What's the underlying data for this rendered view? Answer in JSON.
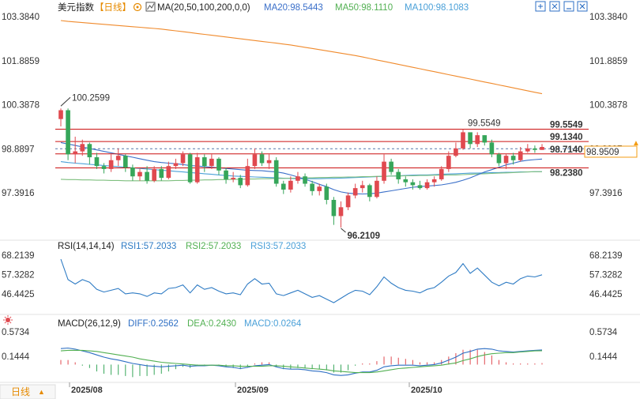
{
  "header": {
    "title": "美元指数",
    "period": "【日线】",
    "ma_label": "MA(20,50,100,200,0,0)",
    "ma20": "MA20:98.5443",
    "ma50": "MA50:98.1110",
    "ma100": "MA100:98.1083",
    "icons": [
      "expand-icon",
      "fullscreen-icon",
      "minimize-icon",
      "close-icon"
    ]
  },
  "colors": {
    "up": "#e0494f",
    "down": "#36a65a",
    "ma20": "#3a6fc9",
    "ma50": "#7fbf7f",
    "ma100": "#4aa0d8",
    "ma200": "#f08a2c",
    "level": "#cc1111",
    "last": "#f39c12",
    "rsi": "#2e7bc4",
    "diff": "#2e6fc4",
    "dea": "#52b052"
  },
  "price_axis": {
    "ticks": [
      "103.3840",
      "101.8859",
      "100.3878",
      "98.8897",
      "97.3916"
    ],
    "current_label": "98.8897"
  },
  "levels": [
    {
      "value": "99.5549"
    },
    {
      "value": "99.1340"
    },
    {
      "value": "98.7140"
    },
    {
      "value": "98.2380"
    }
  ],
  "last_price": "98.9509",
  "annotations": {
    "high": "100.2599",
    "low": "96.2109",
    "swing_high": "99.5549"
  },
  "rsi_panel": {
    "label": "RSI(14,14,14)",
    "rsi1": "RSI1:57.2033",
    "rsi2": "RSI2:57.2033",
    "rsi3": "RSI3:57.2033",
    "ticks": [
      "68.2139",
      "57.3282",
      "46.4425"
    ]
  },
  "macd_panel": {
    "label": "MACD(26,12,9)",
    "diff": "DIFF:0.2562",
    "dea": "DEA:0.2430",
    "macd": "MACD:0.0264",
    "ticks": [
      "0.5734",
      "0.1444"
    ]
  },
  "period_button": "日线",
  "x_labels": [
    "2025/08",
    "2025/09",
    "2025/10"
  ],
  "chart_data": [
    {
      "type": "candlestick",
      "title": "美元指数",
      "ylim": [
        96.2109,
        103.384
      ],
      "y_ticks": [
        103.384,
        101.8859,
        100.3878,
        98.8897,
        97.3916
      ],
      "x_labels": [
        "2025/08",
        "2025/09",
        "2025/10"
      ],
      "candles": [
        [
          99.9,
          100.2,
          100.26,
          99.65
        ],
        [
          100.2,
          98.7,
          100.26,
          98.5
        ],
        [
          98.7,
          98.8,
          99.3,
          98.4
        ],
        [
          98.8,
          99.05,
          99.2,
          98.65
        ],
        [
          99.05,
          98.6,
          99.1,
          98.35
        ],
        [
          98.6,
          98.3,
          98.75,
          98.2
        ],
        [
          98.3,
          98.2,
          98.4,
          98.05
        ],
        [
          98.2,
          98.5,
          98.7,
          98.1
        ],
        [
          98.5,
          98.65,
          98.9,
          98.3
        ],
        [
          98.65,
          98.25,
          98.7,
          98.1
        ],
        [
          98.25,
          97.95,
          98.35,
          97.8
        ],
        [
          97.95,
          98.1,
          98.2,
          97.8
        ],
        [
          98.1,
          97.8,
          98.3,
          97.7
        ],
        [
          97.8,
          98.2,
          98.3,
          97.75
        ],
        [
          98.2,
          97.9,
          98.3,
          97.8
        ],
        [
          97.9,
          98.3,
          98.45,
          97.85
        ],
        [
          98.3,
          98.4,
          98.55,
          98.2
        ],
        [
          98.4,
          98.7,
          98.8,
          98.3
        ],
        [
          98.7,
          97.75,
          98.75,
          97.7
        ],
        [
          97.75,
          98.6,
          98.75,
          97.7
        ],
        [
          98.6,
          98.3,
          98.7,
          98.1
        ],
        [
          98.3,
          98.55,
          98.7,
          98.2
        ],
        [
          98.55,
          98.15,
          98.6,
          98.0
        ],
        [
          98.15,
          97.85,
          98.25,
          97.7
        ],
        [
          97.85,
          97.9,
          98.1,
          97.75
        ],
        [
          97.9,
          97.65,
          98.0,
          97.55
        ],
        [
          97.65,
          98.3,
          98.55,
          97.6
        ],
        [
          98.3,
          98.7,
          98.9,
          98.2
        ],
        [
          98.7,
          98.4,
          98.8,
          98.3
        ],
        [
          98.4,
          98.5,
          98.7,
          98.2
        ],
        [
          98.5,
          97.7,
          98.6,
          97.6
        ],
        [
          97.7,
          97.5,
          97.8,
          97.35
        ],
        [
          97.5,
          97.8,
          97.95,
          97.4
        ],
        [
          97.8,
          97.95,
          98.1,
          97.7
        ],
        [
          97.95,
          97.7,
          98.05,
          97.6
        ],
        [
          97.7,
          97.45,
          97.8,
          97.3
        ],
        [
          97.45,
          97.6,
          97.7,
          97.3
        ],
        [
          97.6,
          97.15,
          97.7,
          97.0
        ],
        [
          97.15,
          96.6,
          97.25,
          96.3
        ],
        [
          96.6,
          96.9,
          97.1,
          96.21
        ],
        [
          96.9,
          97.3,
          97.4,
          96.8
        ],
        [
          97.3,
          97.55,
          97.7,
          97.2
        ],
        [
          97.55,
          97.65,
          97.8,
          97.4
        ],
        [
          97.65,
          97.25,
          97.7,
          97.1
        ],
        [
          97.25,
          97.8,
          97.95,
          97.2
        ],
        [
          97.8,
          98.45,
          98.7,
          97.7
        ],
        [
          98.45,
          98.1,
          98.55,
          98.0
        ],
        [
          98.1,
          97.85,
          98.2,
          97.7
        ],
        [
          97.85,
          97.75,
          97.95,
          97.6
        ],
        [
          97.75,
          97.65,
          97.85,
          97.5
        ],
        [
          97.65,
          97.55,
          97.8,
          97.5
        ],
        [
          97.55,
          97.75,
          97.85,
          97.5
        ],
        [
          97.75,
          97.85,
          97.95,
          97.6
        ],
        [
          97.85,
          98.2,
          98.3,
          97.8
        ],
        [
          98.2,
          98.65,
          98.8,
          98.1
        ],
        [
          98.65,
          98.9,
          99.1,
          98.6
        ],
        [
          98.9,
          99.45,
          99.55,
          98.85
        ],
        [
          99.45,
          99.05,
          99.4,
          98.9
        ],
        [
          99.05,
          99.35,
          99.45,
          98.95
        ],
        [
          99.35,
          99.1,
          99.35,
          99.0
        ],
        [
          99.1,
          98.7,
          99.2,
          98.6
        ],
        [
          98.7,
          98.4,
          98.75,
          98.3
        ],
        [
          98.4,
          98.65,
          98.7,
          98.2
        ],
        [
          98.65,
          98.5,
          98.75,
          98.35
        ],
        [
          98.5,
          98.8,
          98.95,
          98.45
        ],
        [
          98.8,
          98.9,
          99.05,
          98.75
        ],
        [
          98.9,
          98.85,
          99.0,
          98.75
        ],
        [
          98.85,
          98.95,
          99.05,
          98.85
        ]
      ],
      "ma20": [
        99.1,
        99.05,
        99.0,
        98.95,
        98.9,
        98.85,
        98.8,
        98.75,
        98.7,
        98.65,
        98.6,
        98.55,
        98.5,
        98.45,
        98.42,
        98.4,
        98.38,
        98.35,
        98.32,
        98.3,
        98.28,
        98.26,
        98.24,
        98.22,
        98.2,
        98.18,
        98.16,
        98.15,
        98.14,
        98.12,
        98.1,
        98.06,
        98.0,
        97.93,
        97.85,
        97.77,
        97.68,
        97.6,
        97.5,
        97.42,
        97.38,
        97.36,
        97.35,
        97.36,
        97.38,
        97.42,
        97.46,
        97.5,
        97.54,
        97.58,
        97.6,
        97.62,
        97.64,
        97.66,
        97.7,
        97.75,
        97.82,
        97.9,
        98.0,
        98.1,
        98.18,
        98.26,
        98.34,
        98.4,
        98.46,
        98.5,
        98.52,
        98.54
      ],
      "ma50": [
        97.85,
        97.84,
        97.84,
        97.83,
        97.83,
        97.82,
        97.82,
        97.81,
        97.81,
        97.8,
        97.8,
        97.8,
        97.8,
        97.8,
        97.8,
        97.8,
        97.81,
        97.81,
        97.82,
        97.82,
        97.83,
        97.83,
        97.84,
        97.84,
        97.85,
        97.85,
        97.86,
        97.86,
        97.87,
        97.87,
        97.88,
        97.88,
        97.89,
        97.89,
        97.9,
        97.9,
        97.91,
        97.91,
        97.92,
        97.92,
        97.93,
        97.93,
        97.94,
        97.94,
        97.95,
        97.95,
        97.96,
        97.96,
        97.97,
        97.97,
        97.98,
        97.98,
        97.99,
        97.99,
        98.0,
        98.0,
        98.01,
        98.02,
        98.03,
        98.04,
        98.05,
        98.06,
        98.07,
        98.08,
        98.09,
        98.1,
        98.11,
        98.11
      ],
      "ma100": [
        98.45,
        98.42,
        98.4,
        98.38,
        98.36,
        98.34,
        98.32,
        98.3,
        98.28,
        98.26,
        98.24,
        98.22,
        98.2,
        98.18,
        98.16,
        98.14,
        98.12,
        98.1,
        98.08,
        98.06,
        98.04,
        98.02,
        98.0,
        97.98,
        97.96,
        97.95,
        97.94,
        97.93,
        97.92,
        97.91,
        97.9,
        97.89,
        97.88,
        97.87,
        97.87,
        97.87,
        97.87,
        97.88,
        97.88,
        97.89,
        97.9,
        97.91,
        97.92,
        97.93,
        97.94,
        97.95,
        97.96,
        97.97,
        97.98,
        97.99,
        98.0,
        98.0,
        98.01,
        98.02,
        98.03,
        98.04,
        98.05,
        98.06,
        98.06,
        98.07,
        98.08,
        98.08,
        98.09,
        98.09,
        98.1,
        98.1,
        98.11,
        98.11
      ],
      "ma200": [
        103.25,
        103.22,
        103.2,
        103.18,
        103.16,
        103.14,
        103.12,
        103.1,
        103.08,
        103.06,
        103.04,
        103.02,
        103.0,
        102.98,
        102.96,
        102.93,
        102.9,
        102.87,
        102.84,
        102.81,
        102.78,
        102.75,
        102.72,
        102.69,
        102.66,
        102.63,
        102.6,
        102.57,
        102.54,
        102.51,
        102.48,
        102.45,
        102.42,
        102.38,
        102.34,
        102.3,
        102.26,
        102.22,
        102.18,
        102.14,
        102.1,
        102.06,
        102.01,
        101.96,
        101.91,
        101.86,
        101.81,
        101.76,
        101.71,
        101.66,
        101.61,
        101.56,
        101.51,
        101.46,
        101.41,
        101.36,
        101.31,
        101.26,
        101.21,
        101.16,
        101.11,
        101.06,
        101.01,
        100.96,
        100.91,
        100.86,
        100.81,
        100.76
      ],
      "levels": [
        99.5549,
        99.134,
        98.714,
        98.238
      ],
      "last": 98.9509
    },
    {
      "type": "line",
      "title": "RSI(14,14,14)",
      "ylim": [
        40.0,
        70.0
      ],
      "y_ticks": [
        68.2139,
        57.3282,
        46.4425
      ],
      "series": [
        {
          "name": "RSI1",
          "values": [
            66.0,
            54.5,
            52.0,
            54.5,
            53.0,
            49.0,
            47.5,
            48.5,
            49.5,
            46.5,
            47.0,
            46.5,
            45.0,
            47.0,
            46.5,
            49.5,
            50.0,
            51.5,
            47.0,
            51.5,
            49.0,
            50.0,
            48.0,
            46.5,
            47.0,
            46.0,
            52.0,
            55.0,
            52.0,
            52.5,
            46.5,
            45.5,
            47.0,
            48.5,
            46.5,
            44.5,
            45.5,
            43.5,
            41.5,
            44.0,
            46.5,
            48.5,
            48.0,
            46.0,
            50.5,
            56.0,
            52.5,
            50.0,
            48.5,
            48.0,
            47.0,
            49.0,
            50.0,
            53.0,
            56.5,
            58.5,
            63.5,
            58.0,
            61.0,
            57.0,
            53.0,
            51.0,
            53.0,
            52.0,
            55.0,
            56.5,
            56.0,
            57.2
          ]
        }
      ]
    },
    {
      "type": "bar+line",
      "title": "MACD(26,12,9)",
      "ylim": [
        -0.25,
        0.63
      ],
      "y_ticks": [
        0.5734,
        0.1444
      ],
      "series": [
        {
          "name": "DIFF",
          "values": [
            0.28,
            0.29,
            0.27,
            0.24,
            0.21,
            0.17,
            0.13,
            0.1,
            0.08,
            0.05,
            0.02,
            0.0,
            -0.02,
            -0.03,
            -0.04,
            -0.03,
            -0.02,
            -0.01,
            -0.03,
            -0.02,
            -0.02,
            -0.01,
            -0.02,
            -0.04,
            -0.05,
            -0.07,
            -0.05,
            -0.02,
            -0.01,
            0.0,
            -0.04,
            -0.07,
            -0.08,
            -0.08,
            -0.09,
            -0.11,
            -0.12,
            -0.14,
            -0.18,
            -0.19,
            -0.18,
            -0.15,
            -0.13,
            -0.13,
            -0.1,
            -0.04,
            -0.02,
            -0.01,
            -0.01,
            -0.01,
            -0.02,
            -0.01,
            0.0,
            0.03,
            0.08,
            0.13,
            0.2,
            0.23,
            0.27,
            0.28,
            0.27,
            0.24,
            0.23,
            0.22,
            0.23,
            0.24,
            0.25,
            0.2562
          ]
        },
        {
          "name": "DEA",
          "values": [
            0.24,
            0.25,
            0.25,
            0.25,
            0.24,
            0.23,
            0.21,
            0.19,
            0.17,
            0.15,
            0.13,
            0.1,
            0.08,
            0.06,
            0.04,
            0.03,
            0.02,
            0.01,
            0.0,
            -0.01,
            -0.01,
            -0.01,
            -0.01,
            -0.02,
            -0.02,
            -0.03,
            -0.03,
            -0.03,
            -0.03,
            -0.02,
            -0.02,
            -0.03,
            -0.04,
            -0.05,
            -0.06,
            -0.07,
            -0.08,
            -0.09,
            -0.11,
            -0.12,
            -0.13,
            -0.14,
            -0.14,
            -0.14,
            -0.13,
            -0.11,
            -0.09,
            -0.07,
            -0.06,
            -0.05,
            -0.04,
            -0.03,
            -0.02,
            -0.01,
            0.01,
            0.03,
            0.07,
            0.1,
            0.14,
            0.17,
            0.19,
            0.2,
            0.21,
            0.21,
            0.22,
            0.23,
            0.24,
            0.243
          ]
        },
        {
          "name": "MACD",
          "values": [
            0.08,
            0.08,
            0.04,
            -0.02,
            -0.06,
            -0.12,
            -0.16,
            -0.18,
            -0.18,
            -0.2,
            -0.22,
            -0.2,
            -0.2,
            -0.18,
            -0.16,
            -0.12,
            -0.08,
            -0.04,
            -0.06,
            -0.02,
            -0.02,
            0.0,
            -0.02,
            -0.04,
            -0.06,
            -0.08,
            -0.04,
            0.02,
            0.04,
            0.04,
            -0.04,
            -0.08,
            -0.08,
            -0.06,
            -0.06,
            -0.08,
            -0.08,
            -0.1,
            -0.14,
            -0.14,
            -0.1,
            -0.02,
            0.02,
            0.02,
            0.06,
            0.14,
            0.14,
            0.12,
            0.1,
            0.08,
            0.04,
            0.04,
            0.04,
            0.08,
            0.14,
            0.2,
            0.26,
            0.26,
            0.26,
            0.22,
            0.16,
            0.08,
            0.04,
            0.02,
            0.02,
            0.02,
            0.02,
            0.0264
          ]
        }
      ]
    }
  ]
}
